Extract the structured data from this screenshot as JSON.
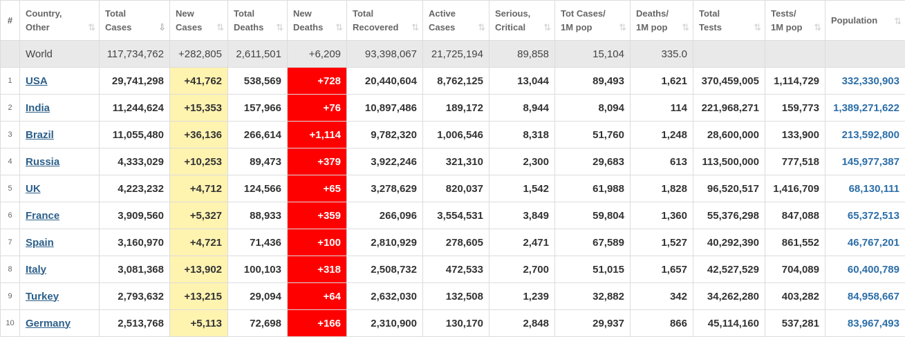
{
  "columns": [
    {
      "key": "idx",
      "label": "#",
      "sort": ""
    },
    {
      "key": "country",
      "label": "Country,\nOther",
      "sort": "⇅"
    },
    {
      "key": "total_cases",
      "label": "Total\nCases",
      "sort": "⇩"
    },
    {
      "key": "new_cases",
      "label": "New\nCases",
      "sort": "⇅"
    },
    {
      "key": "total_deaths",
      "label": "Total\nDeaths",
      "sort": "⇅"
    },
    {
      "key": "new_deaths",
      "label": "New\nDeaths",
      "sort": "⇅"
    },
    {
      "key": "total_recovered",
      "label": "Total\nRecovered",
      "sort": "⇅"
    },
    {
      "key": "active_cases",
      "label": "Active\nCases",
      "sort": "⇅"
    },
    {
      "key": "serious_critical",
      "label": "Serious,\nCritical",
      "sort": "⇅"
    },
    {
      "key": "tot_cases_1m",
      "label": "Tot Cases/\n1M pop",
      "sort": "⇅"
    },
    {
      "key": "deaths_1m",
      "label": "Deaths/\n1M pop",
      "sort": "⇅"
    },
    {
      "key": "total_tests",
      "label": "Total\nTests",
      "sort": "⇅"
    },
    {
      "key": "tests_1m",
      "label": "Tests/\n1M pop",
      "sort": "⇅"
    },
    {
      "key": "population",
      "label": "Population",
      "sort": "⇅"
    }
  ],
  "world": {
    "name": "World",
    "total_cases": "117,734,762",
    "new_cases": "+282,805",
    "total_deaths": "2,611,501",
    "new_deaths": "+6,209",
    "total_recovered": "93,398,067",
    "active_cases": "21,725,194",
    "serious_critical": "89,858",
    "tot_cases_1m": "15,104",
    "deaths_1m": "335.0",
    "total_tests": "",
    "tests_1m": "",
    "population": ""
  },
  "rows": [
    {
      "idx": "1",
      "country": "USA",
      "total_cases": "29,741,298",
      "new_cases": "+41,762",
      "total_deaths": "538,569",
      "new_deaths": "+728",
      "total_recovered": "20,440,604",
      "active_cases": "8,762,125",
      "serious_critical": "13,044",
      "tot_cases_1m": "89,493",
      "deaths_1m": "1,621",
      "total_tests": "370,459,005",
      "tests_1m": "1,114,729",
      "population": "332,330,903"
    },
    {
      "idx": "2",
      "country": "India",
      "total_cases": "11,244,624",
      "new_cases": "+15,353",
      "total_deaths": "157,966",
      "new_deaths": "+76",
      "total_recovered": "10,897,486",
      "active_cases": "189,172",
      "serious_critical": "8,944",
      "tot_cases_1m": "8,094",
      "deaths_1m": "114",
      "total_tests": "221,968,271",
      "tests_1m": "159,773",
      "population": "1,389,271,622"
    },
    {
      "idx": "3",
      "country": "Brazil",
      "total_cases": "11,055,480",
      "new_cases": "+36,136",
      "total_deaths": "266,614",
      "new_deaths": "+1,114",
      "total_recovered": "9,782,320",
      "active_cases": "1,006,546",
      "serious_critical": "8,318",
      "tot_cases_1m": "51,760",
      "deaths_1m": "1,248",
      "total_tests": "28,600,000",
      "tests_1m": "133,900",
      "population": "213,592,800"
    },
    {
      "idx": "4",
      "country": "Russia",
      "total_cases": "4,333,029",
      "new_cases": "+10,253",
      "total_deaths": "89,473",
      "new_deaths": "+379",
      "total_recovered": "3,922,246",
      "active_cases": "321,310",
      "serious_critical": "2,300",
      "tot_cases_1m": "29,683",
      "deaths_1m": "613",
      "total_tests": "113,500,000",
      "tests_1m": "777,518",
      "population": "145,977,387"
    },
    {
      "idx": "5",
      "country": "UK",
      "total_cases": "4,223,232",
      "new_cases": "+4,712",
      "total_deaths": "124,566",
      "new_deaths": "+65",
      "total_recovered": "3,278,629",
      "active_cases": "820,037",
      "serious_critical": "1,542",
      "tot_cases_1m": "61,988",
      "deaths_1m": "1,828",
      "total_tests": "96,520,517",
      "tests_1m": "1,416,709",
      "population": "68,130,111"
    },
    {
      "idx": "6",
      "country": "France",
      "total_cases": "3,909,560",
      "new_cases": "+5,327",
      "total_deaths": "88,933",
      "new_deaths": "+359",
      "total_recovered": "266,096",
      "active_cases": "3,554,531",
      "serious_critical": "3,849",
      "tot_cases_1m": "59,804",
      "deaths_1m": "1,360",
      "total_tests": "55,376,298",
      "tests_1m": "847,088",
      "population": "65,372,513"
    },
    {
      "idx": "7",
      "country": "Spain",
      "total_cases": "3,160,970",
      "new_cases": "+4,721",
      "total_deaths": "71,436",
      "new_deaths": "+100",
      "total_recovered": "2,810,929",
      "active_cases": "278,605",
      "serious_critical": "2,471",
      "tot_cases_1m": "67,589",
      "deaths_1m": "1,527",
      "total_tests": "40,292,390",
      "tests_1m": "861,552",
      "population": "46,767,201"
    },
    {
      "idx": "8",
      "country": "Italy",
      "total_cases": "3,081,368",
      "new_cases": "+13,902",
      "total_deaths": "100,103",
      "new_deaths": "+318",
      "total_recovered": "2,508,732",
      "active_cases": "472,533",
      "serious_critical": "2,700",
      "tot_cases_1m": "51,015",
      "deaths_1m": "1,657",
      "total_tests": "42,527,529",
      "tests_1m": "704,089",
      "population": "60,400,789"
    },
    {
      "idx": "9",
      "country": "Turkey",
      "total_cases": "2,793,632",
      "new_cases": "+13,215",
      "total_deaths": "29,094",
      "new_deaths": "+64",
      "total_recovered": "2,632,030",
      "active_cases": "132,508",
      "serious_critical": "1,239",
      "tot_cases_1m": "32,882",
      "deaths_1m": "342",
      "total_tests": "34,262,280",
      "tests_1m": "403,282",
      "population": "84,958,667"
    },
    {
      "idx": "10",
      "country": "Germany",
      "total_cases": "2,513,768",
      "new_cases": "+5,113",
      "total_deaths": "72,698",
      "new_deaths": "+166",
      "total_recovered": "2,310,900",
      "active_cases": "130,170",
      "serious_critical": "2,848",
      "tot_cases_1m": "29,937",
      "deaths_1m": "866",
      "total_tests": "45,114,160",
      "tests_1m": "537,281",
      "population": "83,967,493"
    }
  ],
  "colors": {
    "new_cases_bg": "#fff3b0",
    "new_deaths_bg": "#ff0000",
    "world_row_bg": "#e9e9e9",
    "link": "#2c5f8a",
    "population_text": "#2c6ea8"
  }
}
